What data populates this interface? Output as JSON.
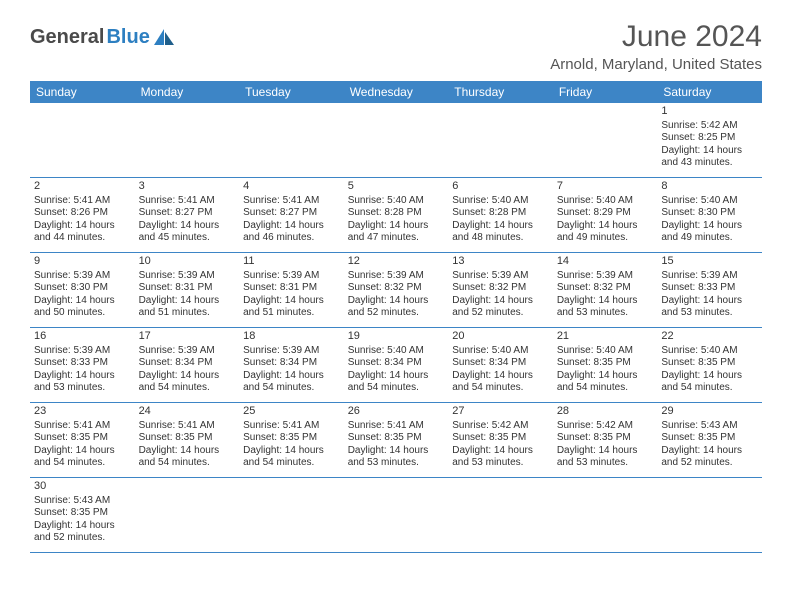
{
  "logo": {
    "part1": "General",
    "part2": "Blue"
  },
  "title": "June 2024",
  "location": "Arnold, Maryland, United States",
  "header_bg": "#3d85c6",
  "day_headers": [
    "Sunday",
    "Monday",
    "Tuesday",
    "Wednesday",
    "Thursday",
    "Friday",
    "Saturday"
  ],
  "weeks": [
    [
      null,
      null,
      null,
      null,
      null,
      null,
      {
        "d": "1",
        "sr": "5:42 AM",
        "ss": "8:25 PM",
        "dl": "14 hours and 43 minutes."
      }
    ],
    [
      {
        "d": "2",
        "sr": "5:41 AM",
        "ss": "8:26 PM",
        "dl": "14 hours and 44 minutes."
      },
      {
        "d": "3",
        "sr": "5:41 AM",
        "ss": "8:27 PM",
        "dl": "14 hours and 45 minutes."
      },
      {
        "d": "4",
        "sr": "5:41 AM",
        "ss": "8:27 PM",
        "dl": "14 hours and 46 minutes."
      },
      {
        "d": "5",
        "sr": "5:40 AM",
        "ss": "8:28 PM",
        "dl": "14 hours and 47 minutes."
      },
      {
        "d": "6",
        "sr": "5:40 AM",
        "ss": "8:28 PM",
        "dl": "14 hours and 48 minutes."
      },
      {
        "d": "7",
        "sr": "5:40 AM",
        "ss": "8:29 PM",
        "dl": "14 hours and 49 minutes."
      },
      {
        "d": "8",
        "sr": "5:40 AM",
        "ss": "8:30 PM",
        "dl": "14 hours and 49 minutes."
      }
    ],
    [
      {
        "d": "9",
        "sr": "5:39 AM",
        "ss": "8:30 PM",
        "dl": "14 hours and 50 minutes."
      },
      {
        "d": "10",
        "sr": "5:39 AM",
        "ss": "8:31 PM",
        "dl": "14 hours and 51 minutes."
      },
      {
        "d": "11",
        "sr": "5:39 AM",
        "ss": "8:31 PM",
        "dl": "14 hours and 51 minutes."
      },
      {
        "d": "12",
        "sr": "5:39 AM",
        "ss": "8:32 PM",
        "dl": "14 hours and 52 minutes."
      },
      {
        "d": "13",
        "sr": "5:39 AM",
        "ss": "8:32 PM",
        "dl": "14 hours and 52 minutes."
      },
      {
        "d": "14",
        "sr": "5:39 AM",
        "ss": "8:32 PM",
        "dl": "14 hours and 53 minutes."
      },
      {
        "d": "15",
        "sr": "5:39 AM",
        "ss": "8:33 PM",
        "dl": "14 hours and 53 minutes."
      }
    ],
    [
      {
        "d": "16",
        "sr": "5:39 AM",
        "ss": "8:33 PM",
        "dl": "14 hours and 53 minutes."
      },
      {
        "d": "17",
        "sr": "5:39 AM",
        "ss": "8:34 PM",
        "dl": "14 hours and 54 minutes."
      },
      {
        "d": "18",
        "sr": "5:39 AM",
        "ss": "8:34 PM",
        "dl": "14 hours and 54 minutes."
      },
      {
        "d": "19",
        "sr": "5:40 AM",
        "ss": "8:34 PM",
        "dl": "14 hours and 54 minutes."
      },
      {
        "d": "20",
        "sr": "5:40 AM",
        "ss": "8:34 PM",
        "dl": "14 hours and 54 minutes."
      },
      {
        "d": "21",
        "sr": "5:40 AM",
        "ss": "8:35 PM",
        "dl": "14 hours and 54 minutes."
      },
      {
        "d": "22",
        "sr": "5:40 AM",
        "ss": "8:35 PM",
        "dl": "14 hours and 54 minutes."
      }
    ],
    [
      {
        "d": "23",
        "sr": "5:41 AM",
        "ss": "8:35 PM",
        "dl": "14 hours and 54 minutes."
      },
      {
        "d": "24",
        "sr": "5:41 AM",
        "ss": "8:35 PM",
        "dl": "14 hours and 54 minutes."
      },
      {
        "d": "25",
        "sr": "5:41 AM",
        "ss": "8:35 PM",
        "dl": "14 hours and 54 minutes."
      },
      {
        "d": "26",
        "sr": "5:41 AM",
        "ss": "8:35 PM",
        "dl": "14 hours and 53 minutes."
      },
      {
        "d": "27",
        "sr": "5:42 AM",
        "ss": "8:35 PM",
        "dl": "14 hours and 53 minutes."
      },
      {
        "d": "28",
        "sr": "5:42 AM",
        "ss": "8:35 PM",
        "dl": "14 hours and 53 minutes."
      },
      {
        "d": "29",
        "sr": "5:43 AM",
        "ss": "8:35 PM",
        "dl": "14 hours and 52 minutes."
      }
    ],
    [
      {
        "d": "30",
        "sr": "5:43 AM",
        "ss": "8:35 PM",
        "dl": "14 hours and 52 minutes."
      },
      null,
      null,
      null,
      null,
      null,
      null
    ]
  ],
  "labels": {
    "sunrise": "Sunrise: ",
    "sunset": "Sunset: ",
    "daylight": "Daylight: "
  }
}
